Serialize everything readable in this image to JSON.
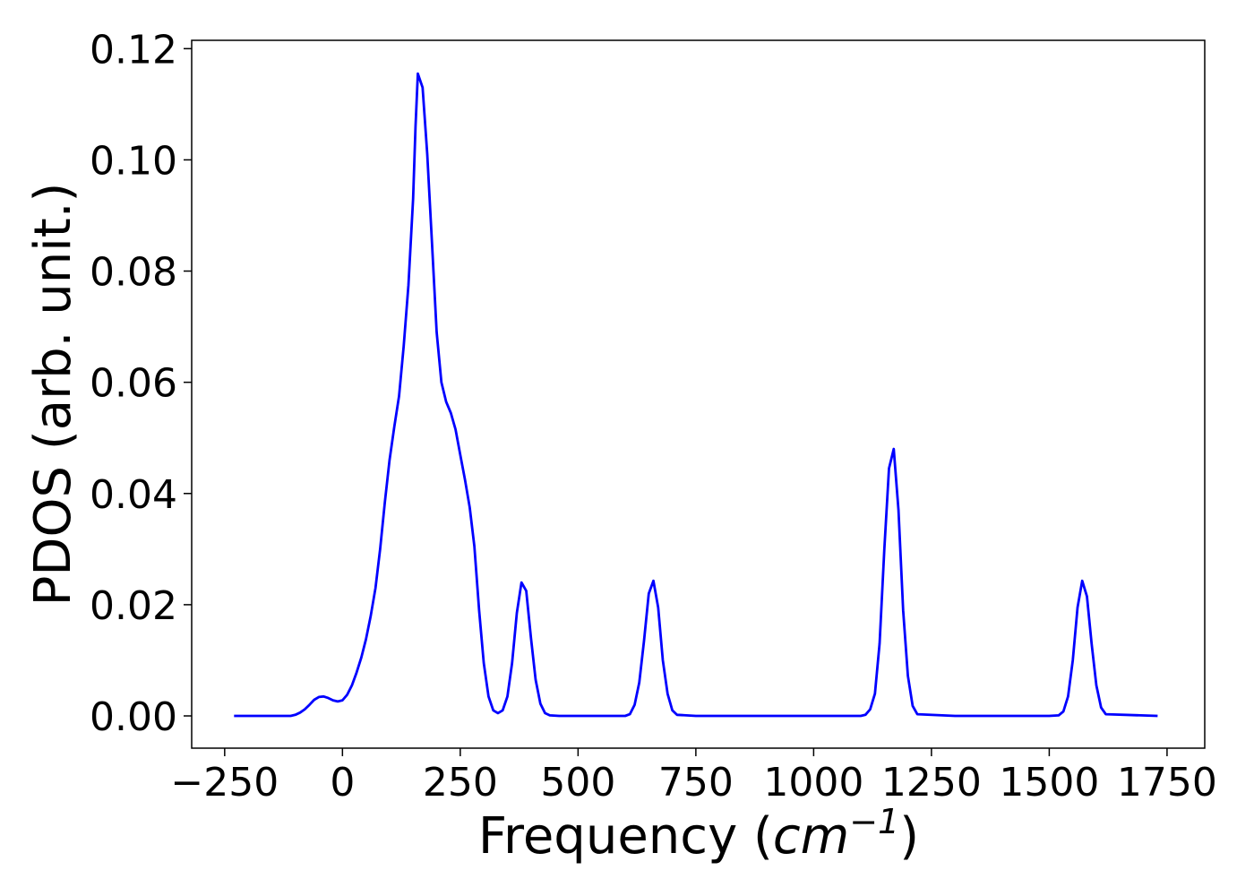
{
  "chart_data": {
    "type": "line",
    "title": "",
    "xlabel_text": "Frequency (",
    "xlabel_unit_base": "cm",
    "xlabel_unit_exp": "−1",
    "xlabel_close": ")",
    "ylabel": "PDOS (arb. unit.)",
    "xlim": [
      -320,
      1830
    ],
    "ylim": [
      -0.0058,
      0.1215
    ],
    "x_ticks": [
      -250,
      0,
      250,
      500,
      750,
      1000,
      1250,
      1500,
      1750
    ],
    "x_tick_labels": [
      "−250",
      "0",
      "250",
      "500",
      "750",
      "1000",
      "1250",
      "1500",
      "1750"
    ],
    "y_ticks": [
      0.0,
      0.02,
      0.04,
      0.06,
      0.08,
      0.1,
      0.12
    ],
    "y_tick_labels": [
      "0.00",
      "0.02",
      "0.04",
      "0.06",
      "0.08",
      "0.10",
      "0.12"
    ],
    "grid": false,
    "line_color": "#0000ff",
    "series": [
      {
        "x": [
          -230,
          -200,
          -150,
          -110,
          -100,
          -90,
          -80,
          -70,
          -60,
          -50,
          -40,
          -30,
          -20,
          -10,
          0,
          10,
          20,
          30,
          40,
          50,
          60,
          70,
          80,
          90,
          100,
          110,
          120,
          130,
          140,
          150,
          155,
          160,
          170,
          180,
          190,
          200,
          210,
          220,
          230,
          240,
          250,
          260,
          270,
          280,
          290,
          300,
          310,
          320,
          330,
          340,
          350,
          360,
          370,
          380,
          390,
          400,
          410,
          420,
          430,
          440,
          460,
          500,
          600,
          610,
          620,
          630,
          640,
          650,
          660,
          670,
          680,
          690,
          700,
          710,
          750,
          900,
          1100,
          1110,
          1120,
          1130,
          1140,
          1150,
          1160,
          1170,
          1180,
          1190,
          1200,
          1210,
          1220,
          1300,
          1500,
          1520,
          1530,
          1540,
          1550,
          1560,
          1570,
          1580,
          1590,
          1600,
          1610,
          1620,
          1730
        ],
        "y": [
          0.0,
          0.0,
          0.0,
          0.0,
          0.0002,
          0.0006,
          0.0012,
          0.002,
          0.0029,
          0.0034,
          0.0035,
          0.0032,
          0.0028,
          0.0026,
          0.0028,
          0.0038,
          0.0055,
          0.0078,
          0.0105,
          0.0138,
          0.018,
          0.023,
          0.03,
          0.0385,
          0.046,
          0.052,
          0.0575,
          0.0665,
          0.0775,
          0.093,
          0.106,
          0.1155,
          0.113,
          0.101,
          0.085,
          0.069,
          0.06,
          0.0565,
          0.0545,
          0.0515,
          0.047,
          0.0425,
          0.0375,
          0.0305,
          0.019,
          0.0095,
          0.0035,
          0.001,
          0.0005,
          0.001,
          0.0035,
          0.0095,
          0.0185,
          0.024,
          0.0225,
          0.014,
          0.0065,
          0.0022,
          0.0005,
          0.0001,
          0.0,
          0.0,
          0.0,
          0.0003,
          0.002,
          0.006,
          0.0135,
          0.022,
          0.0243,
          0.0195,
          0.01,
          0.004,
          0.001,
          0.0002,
          0.0,
          0.0,
          0.0,
          0.0002,
          0.0012,
          0.004,
          0.013,
          0.03,
          0.0445,
          0.048,
          0.037,
          0.019,
          0.0072,
          0.0018,
          0.0003,
          0.0,
          0.0,
          0.0001,
          0.0008,
          0.0035,
          0.01,
          0.0195,
          0.0243,
          0.0215,
          0.013,
          0.0055,
          0.0015,
          0.0003,
          0.0
        ]
      }
    ]
  }
}
